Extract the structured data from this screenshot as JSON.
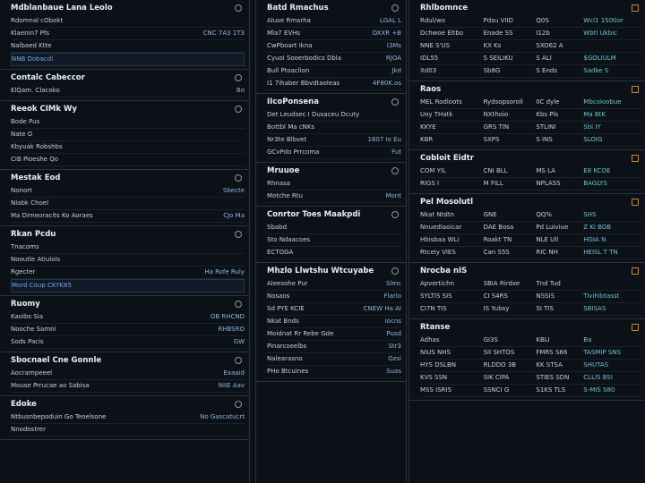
{
  "columns": [
    {
      "panels": [
        {
          "title": "Mdblanbaue Lana Leolo",
          "rows": [
            [
              "Rdomnal cObokt"
            ],
            [
              "Klaenin7 Pfs",
              "CNC 7A3 1T3"
            ],
            [
              "Nalbaed Ktte"
            ],
            [
              "NNB Dobacdl"
            ]
          ]
        },
        {
          "title": "Contalc Cabeccor",
          "rows": [
            [
              "ElQam. Clacoko",
              "Bo"
            ]
          ]
        },
        {
          "title": "Reeok CIMk Wy",
          "rows": [
            [
              "Bode Pus"
            ],
            [
              "Nate O"
            ],
            [
              "Kbyuak Robshbs"
            ],
            [
              "CIB Pioeshe Qo"
            ]
          ]
        },
        {
          "title": "Mestak Eod",
          "rows": [
            [
              "Nonort",
              "Sbecte"
            ],
            [
              "Nlabk Choel"
            ],
            [
              "Ma Dimeoracits Ko Aoraes",
              "CJo Ma"
            ]
          ]
        },
        {
          "title": "Rkan Pcdu",
          "rows": [
            [
              "Tnacoms"
            ],
            [
              "Nooutle Atiulois"
            ],
            [
              "Rgecter",
              "Ha Rofe Ruly"
            ],
            [
              "Mord Coup CKYK65"
            ]
          ]
        },
        {
          "title": "Ruomy",
          "rows": [
            [
              "Kaoibs Sia",
              "OB RHCND"
            ],
            [
              "Nooche Samni",
              "RHBSRO"
            ],
            [
              "Sods Pacis",
              "GW"
            ]
          ]
        },
        {
          "title": "Sbocnael Cne Gonnle",
          "rows": [
            [
              "Aocrampeeel",
              "Exaaid"
            ],
            [
              "Mouse Prrucae ao Sabisa",
              "NIIE Aav"
            ]
          ]
        },
        {
          "title": "Edoke",
          "rows": [
            [
              "Ntbusnbepoduin Go Teoelsone",
              "No Gascatucrt"
            ],
            [
              "Nnodostrer"
            ]
          ]
        }
      ]
    },
    {
      "panels": [
        {
          "title": "Batd Rmachus",
          "rows": [
            [
              "Aluse Rmarha",
              "LGAL L"
            ],
            [
              "Mla7 EVHs",
              "OXXR +B"
            ],
            [
              "CwPboart Ikna",
              "I3Ms"
            ],
            [
              "Cyuoi Sooerbodics Dbla",
              "RJOA"
            ],
            [
              "Bull Ptoaclion",
              "Jkd"
            ],
            [
              "I1 7ihaber Bbvdtaoleas",
              "4F80K.os"
            ]
          ]
        },
        {
          "title": "IIcoPonsena",
          "rows": [
            [
              "Det Leudsec I Dusaceu Dcuty"
            ],
            [
              "Bottbl Ma cNKs"
            ],
            [
              "Nr3te Blbvet",
              "1607 Io Eu"
            ],
            [
              "GCvPdo Prrcoma",
              "Fut"
            ]
          ]
        },
        {
          "title": "Mruuoe",
          "rows": [
            [
              "Rhnasa"
            ],
            [
              "Motche Rtu",
              "Mont"
            ]
          ]
        },
        {
          "title": "Conrtor Toes Maakpdi",
          "rows": [
            [
              "Sbabd"
            ],
            [
              "Sto Ndaacoes"
            ],
            [
              "ECTOGA"
            ]
          ]
        },
        {
          "title": "Mhzlo Llwtshu Wtcuyabe",
          "rows": [
            [
              "Aleesohe Pur",
              "Slmc"
            ],
            [
              "Nosaos",
              "Flarlo"
            ],
            [
              "Sd PYE KCIE",
              "CNEW Ha AI"
            ],
            [
              "Nkat Bnds",
              "Iocns"
            ],
            [
              "Moidnat Rr Rebe Gde",
              "Pusd"
            ],
            [
              "Pinarcoeelbs",
              "Str3"
            ],
            [
              "Nalearasno",
              "Ozsi"
            ],
            [
              "PHo Btcuines",
              "Suas"
            ]
          ]
        }
      ]
    },
    {
      "panels": [
        {
          "title": "Rhlbomnce",
          "rows": [
            [
              "Rdul/wo",
              "Pdsu VIID",
              "Q0S",
              "Wcl1 1S0tlor"
            ],
            [
              "Dchwoe Eltbo",
              "Enade SS",
              "I12b",
              "Wbtl Ukbic"
            ],
            [
              "NNE S'US",
              "KX Ks",
              "SXO62 A"
            ],
            [
              "IDL55",
              "S SEILIKU",
              "S ALI",
              "$GOLIULM"
            ],
            [
              "Xd03",
              "Sb8G",
              "S Ends",
              "Sadke S"
            ]
          ]
        },
        {
          "title": "Raos",
          "rows": [
            [
              "MEL Rodloots",
              "Rydsopsoroll",
              "IIC dyle",
              "Mbcoloobue"
            ],
            [
              "Uoy THatk",
              "NXthoio",
              "Kbs Pls",
              "Ma BtK"
            ],
            [
              "KKYE",
              "GRS TIN",
              "STLINI",
              "Sbi IY"
            ],
            [
              "KBR",
              "SXPS",
              "S INS",
              "SLOIG"
            ]
          ]
        },
        {
          "title": "Cobloit Eidtr",
          "rows": [
            [
              "COM YIL",
              "CNI BLL",
              "MS LA",
              "E8 KCOE"
            ],
            [
              "RIGS I",
              "M FILL",
              "NPLASS",
              "BAGLYS"
            ]
          ]
        },
        {
          "title": "Pel Mosolutl",
          "rows": [
            [
              "Nkat Ntdtn",
              "GNE",
              "QQ%",
              "SHS"
            ],
            [
              "Nnuedlaoicar",
              "DAE Bosa",
              "Pd Luiviue",
              "Z Ki BOB"
            ],
            [
              "Hbisbaa WLi",
              "Roakt TN",
              "NLE Ull",
              "HGIA N"
            ],
            [
              "Rtceiy VIES",
              "Can S5S",
              "RIC NH",
              "HEISL T TN"
            ]
          ]
        },
        {
          "title": "Nrocba nIS",
          "rows": [
            [
              "Apvertichn",
              "SBIA Rirdxe",
              "Tnd Tud"
            ],
            [
              "SYLTIS SIS",
              "CI S4RS",
              "NSSIS",
              "Tivihibtasst"
            ],
            [
              "CI7N TIS",
              "IS Yubsy",
              "SI TIS",
              "SBISAS"
            ]
          ]
        },
        {
          "title": "Rtanse",
          "rows": [
            [
              "Adhas",
              "GI3S",
              "KBLI",
              "Ba"
            ],
            [
              "NIUS NHS",
              "SII SHTOS",
              "FMRS S66",
              "TASMIP SNS"
            ],
            [
              "HYS DSLBN",
              "RLDDO 3B",
              "KK STSA",
              "SHUTAS"
            ],
            [
              "KVS SSN",
              "SIK CIPA",
              "STIES SDN",
              "CLLIS BSI"
            ],
            [
              "MSS ISRIS",
              "SSNCI G",
              "S1KS TLS",
              "S-MIS S80"
            ]
          ]
        }
      ]
    }
  ]
}
